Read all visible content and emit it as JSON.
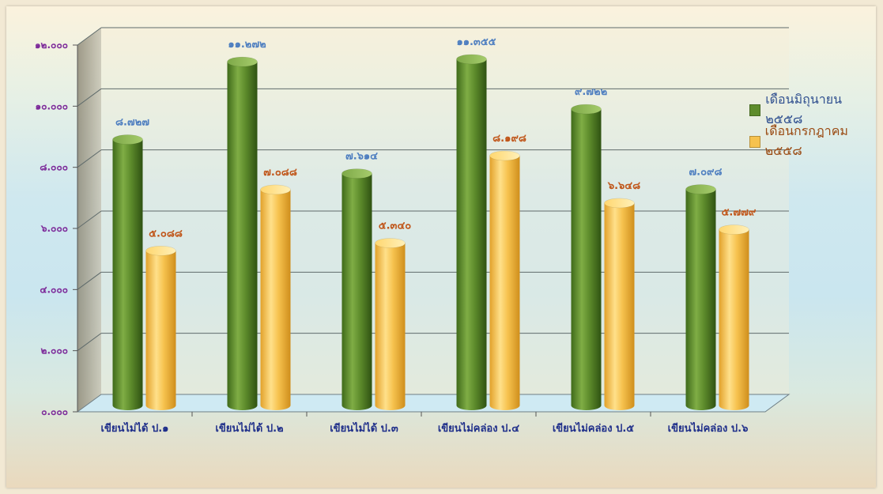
{
  "chart_data": {
    "type": "bar",
    "title": "",
    "xlabel": "",
    "ylabel": "",
    "ylim": [
      0,
      12
    ],
    "y_tick_values": [
      0,
      2,
      4,
      6,
      8,
      10,
      12
    ],
    "y_tick_labels": [
      "๐.๐๐๐",
      "๒.๐๐๐",
      "๔.๐๐๐",
      "๖.๐๐๐",
      "๘.๐๐๐",
      "๑๐.๐๐๐",
      "๑๒.๐๐๐"
    ],
    "categories": [
      "เขียนไม่ได้ ป.๑",
      "เขียนไม่ได้ ป.๒",
      "เขียนไม่ได้ ป.๓",
      "เขียนไม่คล่อง ป.๔",
      "เขียนไม่คล่อง ป.๕",
      "เขียนไม่คล่อง ป.๖"
    ],
    "series": [
      {
        "name": "เดือนมิถุนายน ๒๕๕๘",
        "color": "#5e8c2c",
        "label_color": "#4f7fc0",
        "values": [
          8.727,
          11.272,
          7.614,
          11.355,
          9.722,
          7.098
        ],
        "data_labels": [
          "๘.๗๒๗",
          "๑๑.๒๗๒",
          "๗.๖๑๔",
          "๑๑.๓๕๕",
          "๙.๗๒๒",
          "๗.๐๙๘"
        ]
      },
      {
        "name": "เดือนกรกฎาคม ๒๕๕๘",
        "color": "#f6c24e",
        "label_color": "#c0561a",
        "values": [
          5.088,
          7.088,
          5.34,
          8.198,
          6.648,
          5.779
        ],
        "data_labels": [
          "๕.๐๘๘",
          "๗.๐๘๘",
          "๕.๓๔๐",
          "๘.๑๙๘",
          "๖.๖๔๘",
          "๕.๗๗๙"
        ]
      }
    ],
    "grid": true,
    "legend_position": "right"
  }
}
